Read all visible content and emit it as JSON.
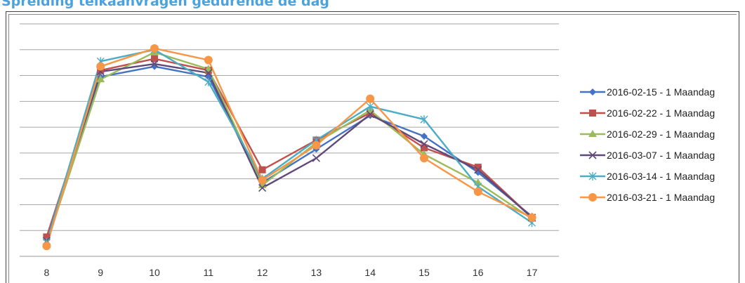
{
  "chart_data": {
    "type": "line",
    "title": "Spreiding telkaanvragen gedurende de dag",
    "categories": [
      "8",
      "9",
      "10",
      "11",
      "12",
      "13",
      "14",
      "15",
      "16",
      "17"
    ],
    "ylim": [
      0,
      9
    ],
    "grid": true,
    "legend_position": "right",
    "series": [
      {
        "name": "2016-02-15 - 1 Maandag",
        "color": "#4472c4",
        "marker": "diamond",
        "values": [
          0.65,
          6.95,
          7.35,
          6.95,
          2.85,
          4.15,
          5.45,
          4.65,
          3.25,
          1.55
        ]
      },
      {
        "name": "2016-02-22 - 1 Maandag",
        "color": "#c0504d",
        "marker": "square",
        "values": [
          0.75,
          7.2,
          7.65,
          7.2,
          3.35,
          4.5,
          5.55,
          4.2,
          3.45,
          1.5
        ]
      },
      {
        "name": "2016-02-29 - 1 Maandag",
        "color": "#9bbb59",
        "marker": "triangle",
        "values": [
          0.5,
          6.85,
          7.9,
          7.25,
          2.75,
          4.4,
          5.65,
          3.95,
          2.85,
          1.45
        ]
      },
      {
        "name": "2016-03-07 - 1 Maandag",
        "color": "#5f497a",
        "marker": "x",
        "values": [
          0.6,
          7.15,
          7.45,
          7.1,
          2.65,
          3.8,
          5.5,
          4.35,
          3.35,
          1.5
        ]
      },
      {
        "name": "2016-03-14 - 1 Maandag",
        "color": "#4bacc6",
        "marker": "star",
        "values": [
          0.55,
          7.55,
          8.0,
          6.75,
          3.0,
          4.5,
          5.8,
          5.3,
          2.7,
          1.3
        ]
      },
      {
        "name": "2016-03-21 - 1 Maandag",
        "color": "#f79646",
        "marker": "circle",
        "values": [
          0.4,
          7.35,
          8.05,
          7.6,
          2.95,
          4.3,
          6.1,
          3.8,
          2.5,
          1.5
        ]
      }
    ]
  }
}
